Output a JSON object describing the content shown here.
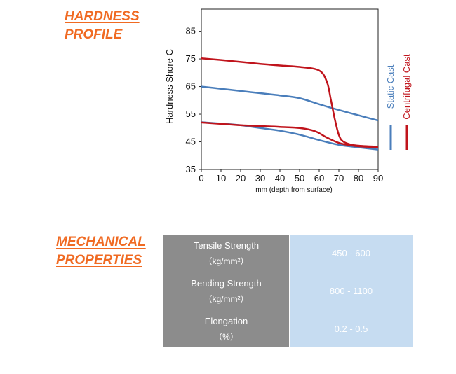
{
  "headings": {
    "hardness": [
      "HARDNESS",
      "PROFILE"
    ],
    "mechanical": [
      "MECHANICAL",
      "PROPERTIES"
    ]
  },
  "chart_data": {
    "type": "line",
    "xlabel": "mm (depth from surface)",
    "ylabel": "Hardness Shore C",
    "xlim": [
      0,
      90
    ],
    "ylim": [
      35,
      93
    ],
    "xticks": [
      0,
      10,
      20,
      30,
      40,
      50,
      60,
      70,
      80,
      90
    ],
    "yticks": [
      35,
      45,
      55,
      65,
      75,
      85
    ],
    "grid": false,
    "legend_position": "right",
    "series": [
      {
        "name": "Static Cast",
        "color": "#4a7ebb",
        "x": [
          0,
          10,
          20,
          30,
          40,
          50,
          60,
          70,
          80,
          90
        ],
        "y": [
          65,
          64.2,
          63.4,
          62.6,
          61.8,
          60.8,
          58.6,
          56.5,
          54.6,
          52.7
        ]
      },
      {
        "name": "Static Cast",
        "color": "#4a7ebb",
        "x": [
          0,
          10,
          20,
          30,
          40,
          50,
          60,
          70,
          80,
          90
        ],
        "y": [
          52.1,
          51.6,
          51,
          50,
          49,
          47.6,
          45.6,
          43.9,
          43,
          42.2
        ]
      },
      {
        "name": "Centrifugal Cast",
        "color": "#c0141c",
        "x": [
          0,
          10,
          20,
          30,
          40,
          50,
          60,
          64,
          66,
          68,
          70,
          72,
          76,
          80,
          90
        ],
        "y": [
          75.2,
          74.6,
          73.9,
          73.2,
          72.6,
          72.1,
          70.8,
          66.5,
          60,
          53,
          47.5,
          45.2,
          44,
          43.6,
          43.2
        ]
      },
      {
        "name": "Centrifugal Cast",
        "color": "#c0141c",
        "x": [
          0,
          10,
          20,
          30,
          40,
          50,
          58,
          64,
          70,
          76,
          82,
          90
        ],
        "y": [
          52,
          51.5,
          51,
          50.7,
          50.4,
          50,
          48.8,
          46.5,
          44.6,
          43.7,
          43.3,
          43
        ]
      }
    ]
  },
  "properties": [
    {
      "name": "Tensile Strength",
      "unit": "（kg/mm²）",
      "value": "450 - 600"
    },
    {
      "name": "Bending Strength",
      "unit": "（kg/mm²）",
      "value": "800 - 1100"
    },
    {
      "name": "Elongation",
      "unit": "（%）",
      "value": "0.2 - 0.5"
    }
  ]
}
